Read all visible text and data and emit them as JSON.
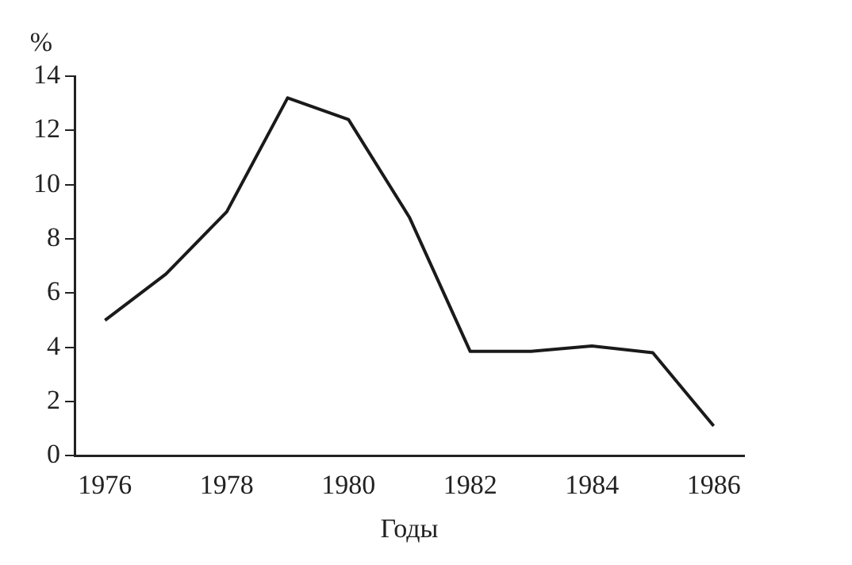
{
  "chart_data": {
    "type": "line",
    "xlabel": "Годы",
    "ylabel": "%",
    "x": [
      1976,
      1977,
      1978,
      1979,
      1980,
      1981,
      1982,
      1983,
      1984,
      1985,
      1986
    ],
    "series": [
      {
        "color": "#1a1a1a",
        "values": [
          5.0,
          6.7,
          9.0,
          13.2,
          12.4,
          8.8,
          3.85,
          3.85,
          4.05,
          3.8,
          1.1
        ]
      }
    ],
    "xlim": [
      1975.5,
      1986.5
    ],
    "xticks": [
      1976,
      1978,
      1980,
      1982,
      1984,
      1986
    ],
    "ylim": [
      0,
      14
    ],
    "yticks": [
      0,
      2,
      4,
      6,
      8,
      10,
      12,
      14
    ],
    "grid": false,
    "legend": false,
    "marker": "none",
    "line_style": "solid"
  }
}
